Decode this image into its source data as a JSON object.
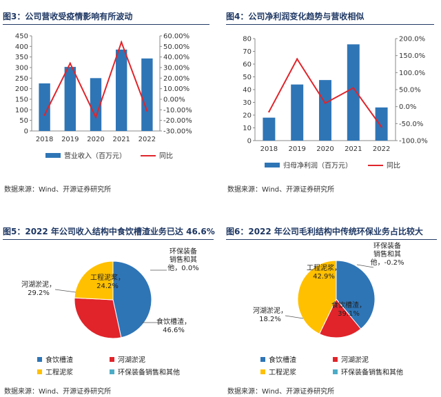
{
  "panels": [
    {
      "title": "图3：公司营收受疫情影响有所波动",
      "source": "数据来源：Wind、开源证券研究所"
    },
    {
      "title": "图4：公司净利润变化趋势与营收相似",
      "source": "数据来源：Wind、开源证券研究所"
    },
    {
      "title": "图5：2022 年公司收入结构中食饮槽渣业务已达 46.6%",
      "source": "数据来源：Wind、开源证券研究所"
    },
    {
      "title": "图6：2022 年公司毛利结构中传统环保业务占比较大",
      "source": "数据来源：Wind、开源证券研究所"
    }
  ],
  "colors": {
    "bar": "#2e75b6",
    "line": "#e0242a",
    "blue": "#2e75b6",
    "red": "#e0242a",
    "yellow": "#ffc000",
    "teal": "#4bacc6",
    "title": "#1f3864"
  },
  "chart_data": [
    {
      "type": "bar",
      "categories": [
        "2018",
        "2019",
        "2020",
        "2021",
        "2022"
      ],
      "series": [
        {
          "name": "营业收入（百万元）",
          "type": "bar",
          "axis": "left",
          "values": [
            225,
            303,
            250,
            385,
            343
          ]
        },
        {
          "name": "同比",
          "type": "line",
          "axis": "right",
          "values": [
            -15.0,
            34.0,
            -17.0,
            54.0,
            -11.0
          ]
        }
      ],
      "ylim": [
        0,
        450
      ],
      "yticks": [
        "0",
        "50",
        "100",
        "150",
        "200",
        "250",
        "300",
        "350",
        "400",
        "450"
      ],
      "y2lim": [
        -30,
        60
      ],
      "y2ticks": [
        "-30.00%",
        "-20.00%",
        "-10.00%",
        "0.00%",
        "10.00%",
        "20.00%",
        "30.00%",
        "40.00%",
        "50.00%",
        "60.00%"
      ],
      "legend": "bottom",
      "grid": false
    },
    {
      "type": "bar",
      "categories": [
        "2018",
        "2019",
        "2020",
        "2021",
        "2022"
      ],
      "series": [
        {
          "name": "归母净利润（百万元）",
          "type": "bar",
          "axis": "left",
          "values": [
            18,
            44,
            47.5,
            75.5,
            26
          ]
        },
        {
          "name": "同比",
          "type": "line",
          "axis": "right",
          "values": [
            -15.0,
            140.0,
            10.0,
            55.0,
            -60.0
          ]
        }
      ],
      "ylim": [
        0,
        80
      ],
      "yticks": [
        "0",
        "10",
        "20",
        "30",
        "40",
        "50",
        "60",
        "70",
        "80"
      ],
      "y2lim": [
        -100,
        200
      ],
      "y2ticks": [
        "-100.0%",
        "-50.0%",
        "0.0%",
        "50.0%",
        "100.0%",
        "150.0%",
        "200.0%"
      ],
      "legend": "bottom",
      "grid": false
    },
    {
      "type": "pie",
      "slices": [
        {
          "name": "食饮槽渣",
          "value": 46.6,
          "label": [
            "食饮槽渣，",
            "46.6%"
          ],
          "color": "blue"
        },
        {
          "name": "河湖淤泥",
          "value": 29.2,
          "label": [
            "河湖淤泥，",
            "29.2%"
          ],
          "color": "red"
        },
        {
          "name": "工程泥浆",
          "value": 24.2,
          "label": [
            "工程泥浆，",
            "24.2%"
          ],
          "color": "yellow"
        },
        {
          "name": "环保装备销售和其他",
          "value": 0.0,
          "label": [
            "环保装备",
            "销售和其",
            "他，0.0%"
          ],
          "color": "teal"
        }
      ],
      "legend": [
        "食饮槽渣",
        "河湖淤泥",
        "工程泥浆",
        "环保装备销售和其他"
      ],
      "legend_position": "bottom"
    },
    {
      "type": "pie",
      "slices": [
        {
          "name": "食饮槽渣",
          "value": 39.1,
          "label": [
            "食饮槽渣，",
            "39.1%"
          ],
          "color": "blue"
        },
        {
          "name": "河湖淤泥",
          "value": 18.2,
          "label": [
            "河湖淤泥，",
            "18.2%"
          ],
          "color": "red"
        },
        {
          "name": "工程泥浆",
          "value": 42.9,
          "label": [
            "工程泥浆，",
            "42.9%"
          ],
          "color": "yellow"
        },
        {
          "name": "环保装备销售和其他",
          "value": -0.2,
          "label": [
            "环保装备",
            "销售和其",
            "他，-0.2%"
          ],
          "color": "teal"
        }
      ],
      "legend": [
        "食饮槽渣",
        "河湖淤泥",
        "工程泥浆",
        "环保装备销售和其他"
      ],
      "legend_position": "bottom"
    }
  ]
}
